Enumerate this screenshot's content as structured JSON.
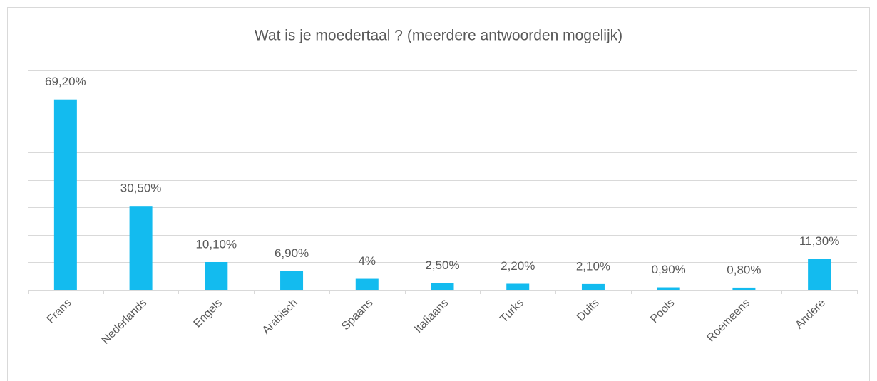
{
  "chart_data": {
    "type": "bar",
    "title": "Wat is je moedertaal ? (meerdere antwoorden mogelijk)",
    "categories": [
      "Frans",
      "Nederlands",
      "Engels",
      "Arabisch",
      "Spaans",
      "Italiaans",
      "Turks",
      "Duits",
      "Pools",
      "Roemeens",
      "Andere"
    ],
    "values": [
      69.2,
      30.5,
      10.1,
      6.9,
      4,
      2.5,
      2.2,
      2.1,
      0.9,
      0.8,
      11.3
    ],
    "value_labels": [
      "69,20%",
      "30,50%",
      "10,10%",
      "6,90%",
      "4%",
      "2,50%",
      "2,20%",
      "2,10%",
      "0,90%",
      "0,80%",
      "11,30%"
    ],
    "color": "#13bbef",
    "ylim": [
      0,
      80
    ],
    "yticks": [
      0,
      10,
      20,
      30,
      40,
      50,
      60,
      70,
      80
    ],
    "grid": true
  }
}
